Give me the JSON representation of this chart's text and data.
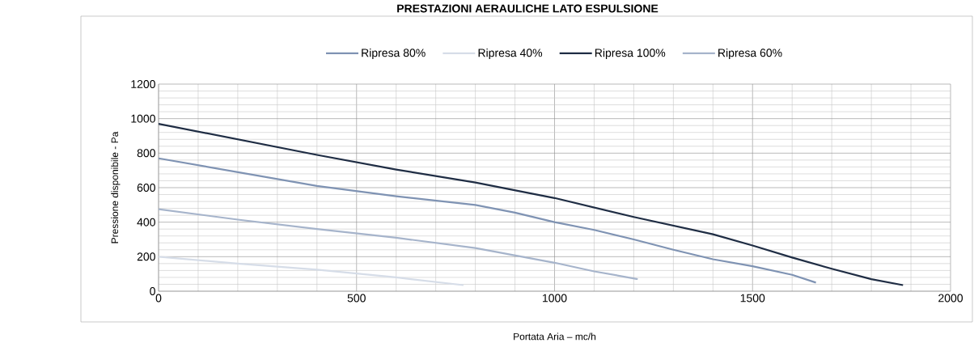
{
  "chart_data": {
    "type": "line",
    "title": "PRESTAZIONI AERAULICHE LATO ESPULSIONE",
    "xlabel": "Portata Aria – mc/h",
    "ylabel": "Pressione disponibile - Pa",
    "xlim": [
      0,
      2000
    ],
    "xticks": [
      0,
      500,
      1000,
      1500,
      2000
    ],
    "ylim": [
      0,
      1200
    ],
    "yticks": [
      0,
      200,
      400,
      600,
      800,
      1000,
      1200
    ],
    "grid": true,
    "legend": "top",
    "marker": "none",
    "line_style": "solid",
    "series": [
      {
        "name": "Ripresa 80%",
        "color": "#7f93b3",
        "x": [
          0,
          200,
          400,
          600,
          800,
          900,
          1000,
          1100,
          1200,
          1300,
          1400,
          1500,
          1600,
          1660
        ],
        "values": [
          770,
          690,
          610,
          550,
          500,
          455,
          400,
          355,
          300,
          240,
          185,
          145,
          95,
          50
        ]
      },
      {
        "name": "Ripresa 40%",
        "color": "#d6dde8",
        "x": [
          0,
          200,
          400,
          600,
          770
        ],
        "values": [
          200,
          160,
          125,
          80,
          35
        ]
      },
      {
        "name": "Ripresa 100%",
        "color": "#1f2d44",
        "x": [
          0,
          200,
          400,
          600,
          800,
          1000,
          1200,
          1400,
          1500,
          1600,
          1700,
          1800,
          1880
        ],
        "values": [
          970,
          880,
          790,
          705,
          630,
          540,
          430,
          330,
          265,
          195,
          130,
          70,
          35
        ]
      },
      {
        "name": "Ripresa 60%",
        "color": "#a6b4cb",
        "x": [
          0,
          200,
          400,
          600,
          800,
          1000,
          1100,
          1210
        ],
        "values": [
          475,
          415,
          360,
          310,
          250,
          165,
          115,
          70
        ]
      }
    ]
  }
}
